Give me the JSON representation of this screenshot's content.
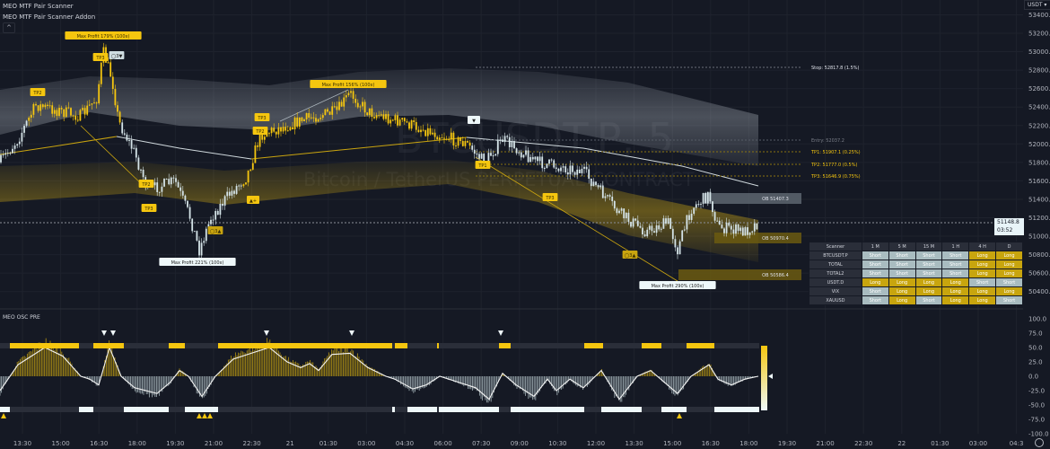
{
  "indicators": {
    "title1": "MEO MTF Pair Scanner",
    "title2": "MEO MTF Pair Scanner Addon",
    "osc_title": "MEO OSC PRE"
  },
  "currency": "USDT",
  "currency_dropdown_icon": "chevron-down-icon",
  "collapse_icon": "chevron-up-icon",
  "watermark": {
    "symbol": "BTCUSDT.P, 5",
    "description": "Bitcoin / TetherUS PERPETUAL CONTRACT"
  },
  "price_axis": [
    "53400.0",
    "53200.0",
    "53000.0",
    "52800.0",
    "52600.0",
    "52400.0",
    "52200.0",
    "52000.0",
    "51800.0",
    "51600.0",
    "51400.0",
    "51200.0",
    "51000.0",
    "50800.0",
    "50600.0",
    "50400.0"
  ],
  "current_price": {
    "value": "51148.8",
    "countdown": "03:52"
  },
  "osc_axis": [
    "100.0",
    "75.0",
    "50.0",
    "25.0",
    "0.0",
    "-25.0",
    "-50.0",
    "-75.0",
    "-100.0"
  ],
  "time_axis": [
    "13:30",
    "15:00",
    "16:30",
    "18:00",
    "19:30",
    "21:00",
    "22:30",
    "21",
    "01:30",
    "03:00",
    "04:30",
    "06:00",
    "07:30",
    "09:00",
    "10:30",
    "12:00",
    "13:30",
    "15:00",
    "16:30",
    "18:00",
    "19:30",
    "21:00",
    "22:30",
    "22",
    "01:30",
    "03:00",
    "04:3"
  ],
  "levels": {
    "stop": "Stop: 52817.8 (1.5%)",
    "entry": "Entry: 52037.2",
    "tp1": "TP1: 51907.1 (0.25%)",
    "tp2": "TP2: 51777.0 (0.5%)",
    "tp3": "TP3: 51646.9 (0.75%)"
  },
  "order_blocks": [
    "OB 51407.3",
    "OB 50970.4",
    "OB 50586.4"
  ],
  "signals": {
    "mp1": "Max Profit 179% (100x)",
    "mp2": "Max Profit 156% (100x)",
    "mp3": "Max Profit 221% (100x)",
    "mp4": "Max Profit 290% (100x)",
    "tp3": "TP3",
    "tp2": "TP2",
    "tp1": "TP1",
    "c3down": "◯3▼",
    "c3up": "◯3▲",
    "plus": "▲+",
    "down": "▼"
  },
  "scanner": {
    "headers": [
      "Scanner",
      "1 M",
      "5 M",
      "15 M",
      "1 H",
      "4 H",
      "D"
    ],
    "rows": [
      {
        "pair": "BTCUSDT.P",
        "cells": [
          "Short",
          "Short",
          "Short",
          "Short",
          "Long",
          "Long"
        ]
      },
      {
        "pair": "TOTAL",
        "cells": [
          "Short",
          "Short",
          "Short",
          "Short",
          "Long",
          "Long"
        ]
      },
      {
        "pair": "TOTAL2",
        "cells": [
          "Short",
          "Short",
          "Short",
          "Short",
          "Long",
          "Long"
        ]
      },
      {
        "pair": "USDT.D",
        "cells": [
          "Long",
          "Long",
          "Long",
          "Long",
          "Short",
          "Short"
        ]
      },
      {
        "pair": "VIX",
        "cells": [
          "Short",
          "Long",
          "Long",
          "Long",
          "Long",
          "Long"
        ]
      },
      {
        "pair": "XAUUSD",
        "cells": [
          "Short",
          "Long",
          "Short",
          "Long",
          "Long",
          "Short"
        ]
      }
    ]
  },
  "colors": {
    "background": "#151924",
    "bull": "#f5c60f",
    "bear": "#d5e4e8",
    "grid": "#1f2330",
    "long_cell": "#c8a50e",
    "short_cell": "#a9bcc0"
  }
}
